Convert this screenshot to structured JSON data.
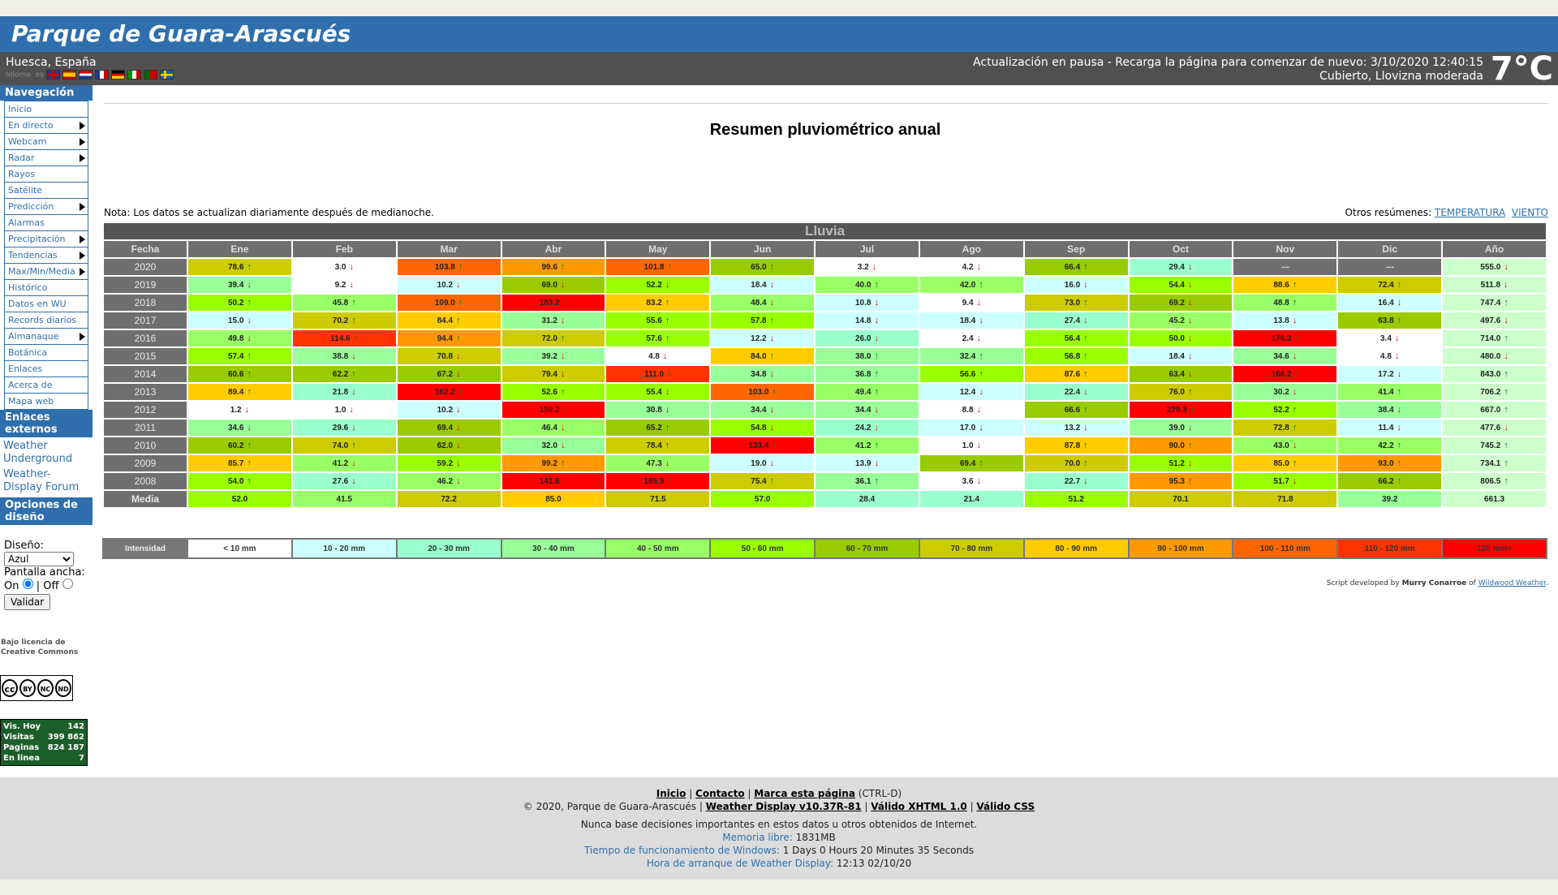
{
  "header": {
    "site_title": "Parque de Guara-Arascués",
    "location": "Huesca, España",
    "idiomas": "Idioma: es",
    "status": "Actualización en pausa - Recarga la página para comenzar de nuevo:  3/10/2020  12:40:15",
    "conditions": "Cubierto, Llovizna moderada",
    "temperature": "7°C"
  },
  "sidebar": {
    "nav_title": "Navegación",
    "nav_items": [
      {
        "label": "Inicio",
        "arrow": false
      },
      {
        "label": "En directo",
        "arrow": true
      },
      {
        "label": "Webcam",
        "arrow": true
      },
      {
        "label": "Radar",
        "arrow": true
      },
      {
        "label": "Rayos",
        "arrow": false
      },
      {
        "label": "Satélite",
        "arrow": false
      },
      {
        "label": "Predicción",
        "arrow": true
      },
      {
        "label": "Alarmas",
        "arrow": false
      },
      {
        "label": "Precipitación",
        "arrow": true
      },
      {
        "label": "Tendencias",
        "arrow": true
      },
      {
        "label": "Max/Min/Media",
        "arrow": true
      },
      {
        "label": "Histórico",
        "arrow": false
      },
      {
        "label": "Datos en WU",
        "arrow": false
      },
      {
        "label": "Records diarios",
        "arrow": false
      },
      {
        "label": "Almanaque",
        "arrow": true
      },
      {
        "label": "Botánica",
        "arrow": false
      },
      {
        "label": "Enlaces",
        "arrow": false
      },
      {
        "label": "Acerca de",
        "arrow": false
      },
      {
        "label": "Mapa web",
        "arrow": false
      }
    ],
    "ext_title": "Enlaces externos",
    "ext_links": [
      "Weather Underground",
      "Weather-Display Forum"
    ],
    "design_title": "Opciones de diseño",
    "design_label": "Diseño:",
    "design_value": "Azul",
    "wide_label": "Pantalla ancha:",
    "on_label": "On",
    "off_label": "Off",
    "validate_label": "Validar",
    "license": "Bajo licencia de Creative Commons",
    "cc_labels": [
      "BY",
      "NC",
      "ND"
    ],
    "counter": [
      {
        "label": "Vis. Hoy",
        "value": "142"
      },
      {
        "label": "Visitas",
        "value": "399 862"
      },
      {
        "label": "Paginas",
        "value": "824 187"
      },
      {
        "label": "En linea",
        "value": "7"
      }
    ]
  },
  "main": {
    "title": "Resumen pluviométrico anual",
    "nota": "Nota: Los datos se actualizan diariamente después de medianoche.",
    "otros_label": "Otros resúmenes:",
    "otros_links": [
      "TEMPERATURA",
      "VIENTO"
    ],
    "table_caption": "Lluvia",
    "headers": [
      "Fecha",
      "Ene",
      "Feb",
      "Mar",
      "Abr",
      "May",
      "Jun",
      "Jul",
      "Ago",
      "Sep",
      "Oct",
      "Nov",
      "Dic",
      "Año"
    ],
    "rows": [
      {
        "year": "2020",
        "cells": [
          [
            "78.6",
            "u"
          ],
          [
            "3.0",
            "d"
          ],
          [
            "103.8",
            "u"
          ],
          [
            "99.6",
            "u"
          ],
          [
            "101.8",
            "u"
          ],
          [
            "65.0",
            "u"
          ],
          [
            "3.2",
            "d"
          ],
          [
            "4.2",
            "d"
          ],
          [
            "66.4",
            "u"
          ],
          [
            "29.4",
            "d"
          ],
          [
            "---",
            ""
          ],
          [
            "---",
            ""
          ],
          [
            "555.0",
            "d"
          ]
        ]
      },
      {
        "year": "2019",
        "cells": [
          [
            "39.4",
            "d"
          ],
          [
            "9.2",
            "d"
          ],
          [
            "10.2",
            "d"
          ],
          [
            "69.0",
            "d"
          ],
          [
            "52.2",
            "d"
          ],
          [
            "18.4",
            "d"
          ],
          [
            "40.0",
            "u"
          ],
          [
            "42.0",
            "u"
          ],
          [
            "16.0",
            "d"
          ],
          [
            "54.4",
            "d"
          ],
          [
            "88.6",
            "u"
          ],
          [
            "72.4",
            "u"
          ],
          [
            "511.8",
            "d"
          ]
        ]
      },
      {
        "year": "2018",
        "cells": [
          [
            "50.2",
            "u"
          ],
          [
            "45.8",
            "u"
          ],
          [
            "109.0",
            "u"
          ],
          [
            "183.2",
            "u"
          ],
          [
            "83.2",
            "u"
          ],
          [
            "48.4",
            "d"
          ],
          [
            "10.8",
            "d"
          ],
          [
            "9.4",
            "d"
          ],
          [
            "73.0",
            "u"
          ],
          [
            "69.2",
            "d"
          ],
          [
            "48.8",
            "u"
          ],
          [
            "16.4",
            "d"
          ],
          [
            "747.4",
            "u"
          ]
        ]
      },
      {
        "year": "2017",
        "cells": [
          [
            "15.0",
            "d"
          ],
          [
            "70.2",
            "u"
          ],
          [
            "84.4",
            "u"
          ],
          [
            "31.2",
            "d"
          ],
          [
            "55.6",
            "u"
          ],
          [
            "57.8",
            "u"
          ],
          [
            "14.8",
            "d"
          ],
          [
            "18.4",
            "d"
          ],
          [
            "27.4",
            "d"
          ],
          [
            "45.2",
            "d"
          ],
          [
            "13.8",
            "d"
          ],
          [
            "63.8",
            "u"
          ],
          [
            "497.6",
            "d"
          ]
        ]
      },
      {
        "year": "2016",
        "cells": [
          [
            "49.8",
            "d"
          ],
          [
            "114.6",
            "u"
          ],
          [
            "94.4",
            "u"
          ],
          [
            "72.0",
            "u"
          ],
          [
            "57.6",
            "u"
          ],
          [
            "12.2",
            "d"
          ],
          [
            "26.0",
            "d"
          ],
          [
            "2.4",
            "d"
          ],
          [
            "56.4",
            "u"
          ],
          [
            "50.0",
            "d"
          ],
          [
            "176.2",
            "u"
          ],
          [
            "3.4",
            "d"
          ],
          [
            "714.0",
            "u"
          ]
        ]
      },
      {
        "year": "2015",
        "cells": [
          [
            "57.4",
            "u"
          ],
          [
            "38.8",
            "d"
          ],
          [
            "70.8",
            "d"
          ],
          [
            "39.2",
            "d"
          ],
          [
            "4.8",
            "d"
          ],
          [
            "84.0",
            "u"
          ],
          [
            "38.0",
            "u"
          ],
          [
            "32.4",
            "u"
          ],
          [
            "56.8",
            "u"
          ],
          [
            "18.4",
            "d"
          ],
          [
            "34.6",
            "d"
          ],
          [
            "4.8",
            "d"
          ],
          [
            "480.0",
            "d"
          ]
        ]
      },
      {
        "year": "2014",
        "cells": [
          [
            "60.6",
            "u"
          ],
          [
            "62.2",
            "u"
          ],
          [
            "67.2",
            "d"
          ],
          [
            "79.4",
            "d"
          ],
          [
            "111.0",
            "u"
          ],
          [
            "34.8",
            "d"
          ],
          [
            "36.8",
            "u"
          ],
          [
            "56.6",
            "u"
          ],
          [
            "87.6",
            "u"
          ],
          [
            "63.4",
            "d"
          ],
          [
            "166.2",
            "u"
          ],
          [
            "17.2",
            "d"
          ],
          [
            "843.0",
            "u"
          ]
        ]
      },
      {
        "year": "2013",
        "cells": [
          [
            "89.4",
            "u"
          ],
          [
            "21.8",
            "d"
          ],
          [
            "162.2",
            "u"
          ],
          [
            "52.6",
            "u"
          ],
          [
            "55.4",
            "d"
          ],
          [
            "103.0",
            "u"
          ],
          [
            "49.4",
            "u"
          ],
          [
            "12.4",
            "d"
          ],
          [
            "22.4",
            "d"
          ],
          [
            "76.0",
            "u"
          ],
          [
            "30.2",
            "d"
          ],
          [
            "41.4",
            "u"
          ],
          [
            "706.2",
            "u"
          ]
        ]
      },
      {
        "year": "2012",
        "cells": [
          [
            "1.2",
            "d"
          ],
          [
            "1.0",
            "d"
          ],
          [
            "10.2",
            "d"
          ],
          [
            "159.2",
            "u"
          ],
          [
            "30.8",
            "d"
          ],
          [
            "34.4",
            "d"
          ],
          [
            "34.4",
            "d"
          ],
          [
            "8.8",
            "d"
          ],
          [
            "66.6",
            "u"
          ],
          [
            "229.8",
            "u"
          ],
          [
            "52.2",
            "u"
          ],
          [
            "38.4",
            "d"
          ],
          [
            "667.0",
            "u"
          ]
        ]
      },
      {
        "year": "2011",
        "cells": [
          [
            "34.6",
            "d"
          ],
          [
            "29.6",
            "d"
          ],
          [
            "69.4",
            "d"
          ],
          [
            "46.4",
            "d"
          ],
          [
            "65.2",
            "u"
          ],
          [
            "54.8",
            "d"
          ],
          [
            "24.2",
            "d"
          ],
          [
            "17.0",
            "d"
          ],
          [
            "13.2",
            "d"
          ],
          [
            "39.0",
            "d"
          ],
          [
            "72.8",
            "u"
          ],
          [
            "11.4",
            "d"
          ],
          [
            "477.6",
            "d"
          ]
        ]
      },
      {
        "year": "2010",
        "cells": [
          [
            "60.2",
            "u"
          ],
          [
            "74.0",
            "u"
          ],
          [
            "62.0",
            "d"
          ],
          [
            "32.0",
            "d"
          ],
          [
            "78.4",
            "u"
          ],
          [
            "133.4",
            "u"
          ],
          [
            "41.2",
            "u"
          ],
          [
            "1.0",
            "d"
          ],
          [
            "87.8",
            "u"
          ],
          [
            "90.0",
            "u"
          ],
          [
            "43.0",
            "d"
          ],
          [
            "42.2",
            "u"
          ],
          [
            "745.2",
            "u"
          ]
        ]
      },
      {
        "year": "2009",
        "cells": [
          [
            "85.7",
            "u"
          ],
          [
            "41.2",
            "d"
          ],
          [
            "59.2",
            "d"
          ],
          [
            "99.2",
            "u"
          ],
          [
            "47.3",
            "d"
          ],
          [
            "19.0",
            "d"
          ],
          [
            "13.9",
            "d"
          ],
          [
            "69.4",
            "u"
          ],
          [
            "70.0",
            "u"
          ],
          [
            "51.2",
            "d"
          ],
          [
            "85.0",
            "u"
          ],
          [
            "93.0",
            "u"
          ],
          [
            "734.1",
            "u"
          ]
        ]
      },
      {
        "year": "2008",
        "cells": [
          [
            "54.0",
            "u"
          ],
          [
            "27.6",
            "d"
          ],
          [
            "46.2",
            "d"
          ],
          [
            "141.6",
            "u"
          ],
          [
            "185.9",
            "u"
          ],
          [
            "75.4",
            "u"
          ],
          [
            "36.1",
            "u"
          ],
          [
            "3.6",
            "d"
          ],
          [
            "22.7",
            "d"
          ],
          [
            "95.3",
            "u"
          ],
          [
            "51.7",
            "d"
          ],
          [
            "66.2",
            "u"
          ],
          [
            "806.5",
            "u"
          ]
        ]
      }
    ],
    "media_label": "Media",
    "media": [
      "52.0",
      "41.5",
      "72.2",
      "85.0",
      "71.5",
      "57.0",
      "28.4",
      "21.4",
      "51.2",
      "70.1",
      "71.8",
      "39.2",
      "661.3"
    ],
    "legend_label": "Intensidad",
    "legend": [
      {
        "label": "< 10 mm",
        "color": "#ffffff"
      },
      {
        "label": "10 - 20 mm",
        "color": "#ccffff"
      },
      {
        "label": "20 - 30 mm",
        "color": "#99ffcc"
      },
      {
        "label": "30 - 40 mm",
        "color": "#99ff99"
      },
      {
        "label": "40 - 50 mm",
        "color": "#99ff66"
      },
      {
        "label": "50 - 60 mm",
        "color": "#99ff00"
      },
      {
        "label": "60 - 70 mm",
        "color": "#99cc00"
      },
      {
        "label": "70 - 80 mm",
        "color": "#cccc00"
      },
      {
        "label": "80 - 90 mm",
        "color": "#ffcc00"
      },
      {
        "label": "90 - 100 mm",
        "color": "#ff9900"
      },
      {
        "label": "100 - 110 mm",
        "color": "#ff6600"
      },
      {
        "label": "110 - 120 mm",
        "color": "#ff3300"
      },
      {
        "label": "120 mm>",
        "color": "#ff0000"
      }
    ],
    "credit_prefix": "Script developed by",
    "credit_author": "Murry Conarroe",
    "credit_of": "of",
    "credit_link": "Wildwood Weather"
  },
  "footer": {
    "links": [
      "Inicio",
      "Contacto",
      "Marca esta página"
    ],
    "ctrl": "(CTRL-D)",
    "copyright": "© 2020, Parque de Guara-Arascués |",
    "links2": [
      "Weather Display v10.37R-81",
      "Válido XHTML 1.0",
      "Válido CSS"
    ],
    "disclaimer": "Nunca base decisiones importantes en estos datos u otros obtenidos de Internet.",
    "mem_label": "Memoria libre:",
    "mem_value": "1831MB",
    "uptime_label": "Tiempo de funcionamiento de Windows:",
    "uptime_value": "1 Days 0 Hours 20 Minutes 35 Seconds",
    "start_label": "Hora de arranque de Weather Display:",
    "start_value": "12:13 02/10/20"
  }
}
